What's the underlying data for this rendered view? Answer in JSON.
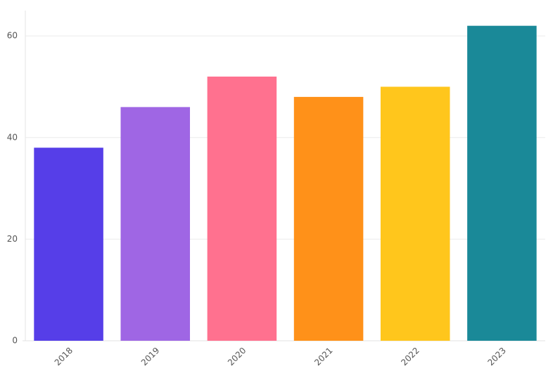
{
  "chart_data": {
    "type": "bar",
    "categories": [
      "2018",
      "2019",
      "2020",
      "2021",
      "2022",
      "2023"
    ],
    "values": [
      38,
      46,
      52,
      48,
      50,
      62
    ],
    "colors": [
      "#563ee8",
      "#9f66e4",
      "#ff718f",
      "#ff9119",
      "#ffc61c",
      "#1a8998"
    ],
    "ylim": [
      0,
      65
    ],
    "yticks": [
      0,
      20,
      40,
      60
    ],
    "grid": true
  }
}
